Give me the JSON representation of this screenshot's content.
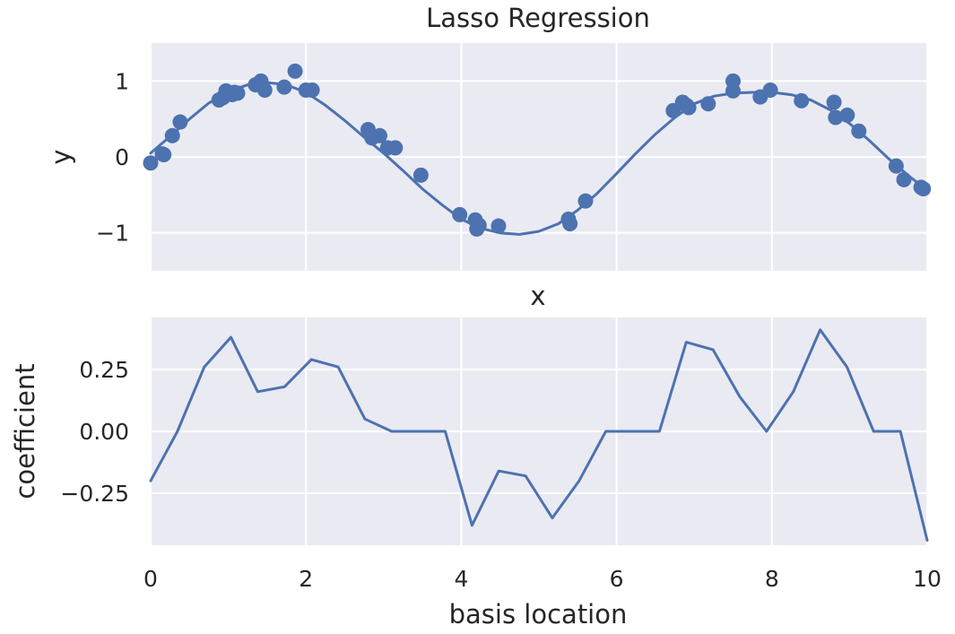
{
  "figure": {
    "title": "Lasso Regression"
  },
  "colors": {
    "series": "#4c72b0",
    "plot_background": "#eaeaf2",
    "grid": "#ffffff",
    "text": "#262626"
  },
  "chart_data": [
    {
      "type": "scatter",
      "title": "Lasso Regression",
      "xlabel": "x",
      "ylabel": "y",
      "xlim": [
        0,
        10
      ],
      "ylim": [
        -1.5,
        1.5
      ],
      "grid": true,
      "xticks": [
        0,
        2,
        4,
        6,
        8,
        10
      ],
      "show_xtick_labels": false,
      "yticks": [
        {
          "value": 1,
          "label": "1"
        },
        {
          "value": 0,
          "label": "0"
        },
        {
          "value": -1,
          "label": "−1"
        }
      ],
      "points": {
        "x": [
          0.0,
          0.15,
          0.17,
          0.28,
          0.38,
          0.88,
          0.93,
          0.97,
          1.05,
          1.08,
          1.12,
          1.35,
          1.42,
          1.47,
          1.72,
          1.86,
          2.0,
          2.08,
          2.8,
          2.85,
          2.95,
          3.05,
          3.15,
          3.48,
          3.98,
          4.18,
          4.2,
          4.23,
          4.48,
          5.38,
          5.4,
          5.6,
          6.73,
          6.85,
          6.9,
          6.93,
          7.18,
          7.5,
          7.5,
          7.85,
          7.98,
          8.38,
          8.8,
          8.82,
          8.97,
          9.12,
          9.6,
          9.7,
          9.92,
          9.95
        ],
        "y": [
          -0.08,
          0.04,
          0.03,
          0.28,
          0.46,
          0.75,
          0.78,
          0.87,
          0.82,
          0.85,
          0.84,
          0.95,
          1.0,
          0.88,
          0.92,
          1.13,
          0.88,
          0.88,
          0.36,
          0.25,
          0.28,
          0.12,
          0.12,
          -0.24,
          -0.76,
          -0.83,
          -0.95,
          -0.9,
          -0.91,
          -0.82,
          -0.88,
          -0.58,
          0.61,
          0.72,
          0.68,
          0.65,
          0.7,
          0.87,
          1.0,
          0.79,
          0.88,
          0.74,
          0.72,
          0.52,
          0.55,
          0.34,
          -0.12,
          -0.3,
          -0.4,
          -0.42
        ]
      },
      "fit_line": {
        "x": [
          0.0,
          0.25,
          0.5,
          0.75,
          1.0,
          1.25,
          1.5,
          1.75,
          2.0,
          2.25,
          2.5,
          2.75,
          3.0,
          3.25,
          3.5,
          3.75,
          4.0,
          4.25,
          4.5,
          4.75,
          5.0,
          5.25,
          5.5,
          5.75,
          6.0,
          6.25,
          6.5,
          6.75,
          7.0,
          7.25,
          7.5,
          7.75,
          8.0,
          8.25,
          8.5,
          8.75,
          9.0,
          9.25,
          9.5,
          9.75,
          10.0
        ],
        "y": [
          0.05,
          0.27,
          0.5,
          0.71,
          0.86,
          0.95,
          0.98,
          0.95,
          0.85,
          0.68,
          0.48,
          0.26,
          0.05,
          -0.18,
          -0.42,
          -0.63,
          -0.82,
          -0.94,
          -1.0,
          -1.02,
          -0.98,
          -0.88,
          -0.7,
          -0.48,
          -0.22,
          0.05,
          0.3,
          0.52,
          0.7,
          0.8,
          0.84,
          0.85,
          0.85,
          0.82,
          0.75,
          0.62,
          0.44,
          0.22,
          -0.02,
          -0.24,
          -0.44
        ]
      }
    },
    {
      "type": "line",
      "xlabel": "basis location",
      "ylabel": "coefficient",
      "xlim": [
        0,
        10
      ],
      "ylim": [
        -0.46,
        0.46
      ],
      "grid": true,
      "xticks": [
        {
          "value": 0,
          "label": "0"
        },
        {
          "value": 2,
          "label": "2"
        },
        {
          "value": 4,
          "label": "4"
        },
        {
          "value": 6,
          "label": "6"
        },
        {
          "value": 8,
          "label": "8"
        },
        {
          "value": 10,
          "label": "10"
        }
      ],
      "yticks": [
        {
          "value": 0.25,
          "label": "0.25"
        },
        {
          "value": 0,
          "label": "0.00"
        },
        {
          "value": -0.25,
          "label": "−0.25"
        }
      ],
      "x": [
        0.0,
        0.345,
        0.69,
        1.034,
        1.379,
        1.724,
        2.069,
        2.414,
        2.759,
        3.103,
        3.448,
        3.793,
        4.138,
        4.483,
        4.828,
        5.172,
        5.517,
        5.862,
        6.207,
        6.552,
        6.897,
        7.241,
        7.586,
        7.931,
        8.276,
        8.621,
        8.966,
        9.31,
        9.655,
        10.0
      ],
      "y": [
        -0.2,
        0.0,
        0.26,
        0.38,
        0.16,
        0.18,
        0.29,
        0.26,
        0.05,
        0.0,
        0.0,
        0.0,
        -0.38,
        -0.16,
        -0.18,
        -0.35,
        -0.2,
        0.0,
        0.0,
        0.0,
        0.36,
        0.33,
        0.14,
        0.0,
        0.16,
        0.41,
        0.26,
        0.0,
        0.0,
        -0.44
      ]
    }
  ]
}
